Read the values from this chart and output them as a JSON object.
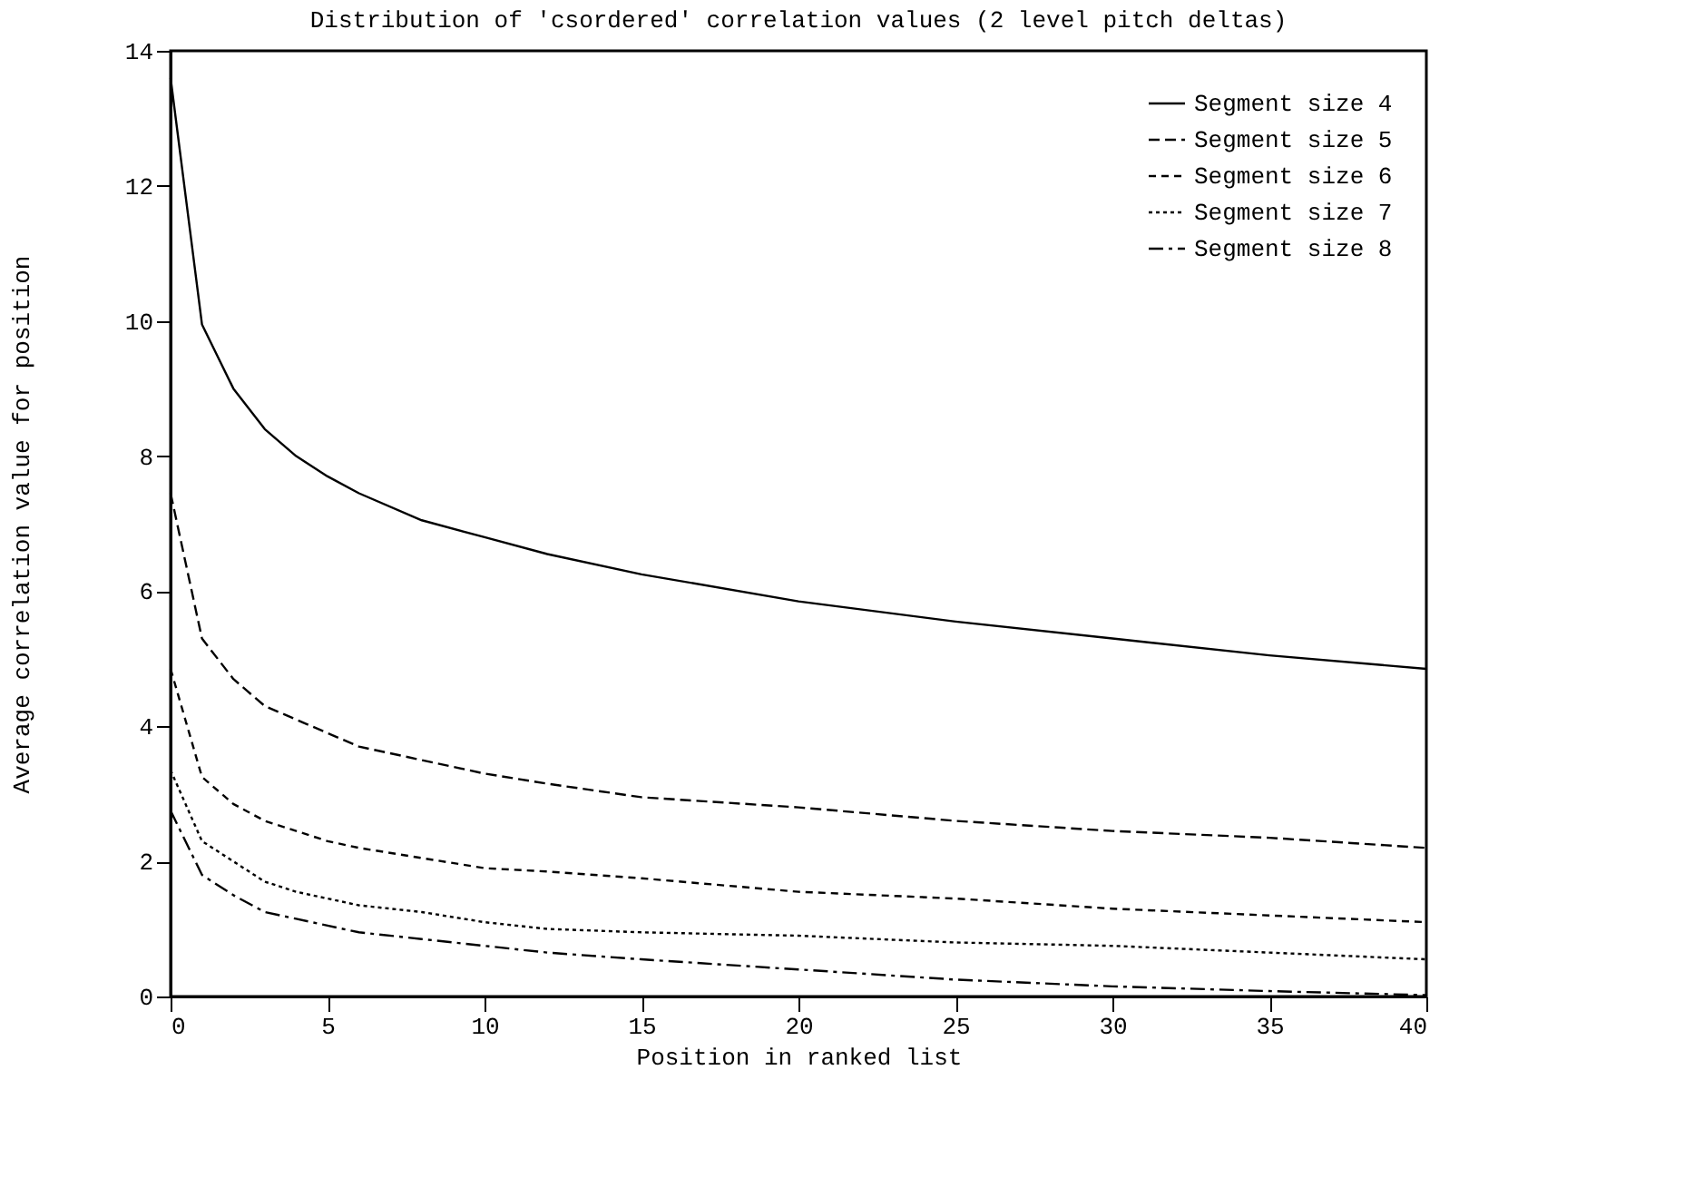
{
  "chart_data": {
    "type": "line",
    "title": "Distribution of 'csordered' correlation values (2 level pitch deltas)",
    "xlabel": "Position in ranked list",
    "ylabel": "Average correlation value for position",
    "x": [
      0,
      1,
      2,
      3,
      4,
      5,
      6,
      8,
      10,
      12,
      15,
      20,
      25,
      30,
      35,
      40
    ],
    "series": [
      {
        "name": "Segment size 4",
        "color": "#000000",
        "line_style": "solid",
        "values": [
          13.6,
          9.95,
          9.0,
          8.4,
          8.0,
          7.7,
          7.45,
          7.05,
          6.8,
          6.55,
          6.25,
          5.85,
          5.55,
          5.3,
          5.05,
          4.85
        ]
      },
      {
        "name": "Segment size 5",
        "color": "#000000",
        "line_style": "dashed",
        "values": [
          7.45,
          5.3,
          4.7,
          4.3,
          4.1,
          3.9,
          3.7,
          3.5,
          3.3,
          3.15,
          2.95,
          2.8,
          2.6,
          2.45,
          2.35,
          2.2
        ]
      },
      {
        "name": "Segment size 6",
        "color": "#000000",
        "line_style": "dashed",
        "values": [
          4.85,
          3.25,
          2.85,
          2.6,
          2.45,
          2.3,
          2.2,
          2.05,
          1.9,
          1.85,
          1.75,
          1.55,
          1.45,
          1.3,
          1.2,
          1.1
        ]
      },
      {
        "name": "Segment size 7",
        "color": "#000000",
        "line_style": "dotted",
        "values": [
          3.35,
          2.3,
          2.0,
          1.7,
          1.55,
          1.45,
          1.35,
          1.25,
          1.1,
          1.0,
          0.95,
          0.9,
          0.8,
          0.75,
          0.65,
          0.55
        ]
      },
      {
        "name": "Segment size 8",
        "color": "#000000",
        "line_style": "dashed",
        "values": [
          2.75,
          1.8,
          1.5,
          1.25,
          1.15,
          1.05,
          0.95,
          0.85,
          0.75,
          0.65,
          0.55,
          0.4,
          0.25,
          0.15,
          0.08,
          0.02
        ]
      }
    ],
    "xlim": [
      0,
      40
    ],
    "xticks": [
      0,
      5,
      10,
      15,
      20,
      25,
      30,
      35,
      40
    ],
    "ylim": [
      0,
      14
    ],
    "yticks": [
      0,
      2,
      4,
      6,
      8,
      10,
      12,
      14
    ],
    "grid": false,
    "legend": "top right",
    "marker": "none"
  }
}
